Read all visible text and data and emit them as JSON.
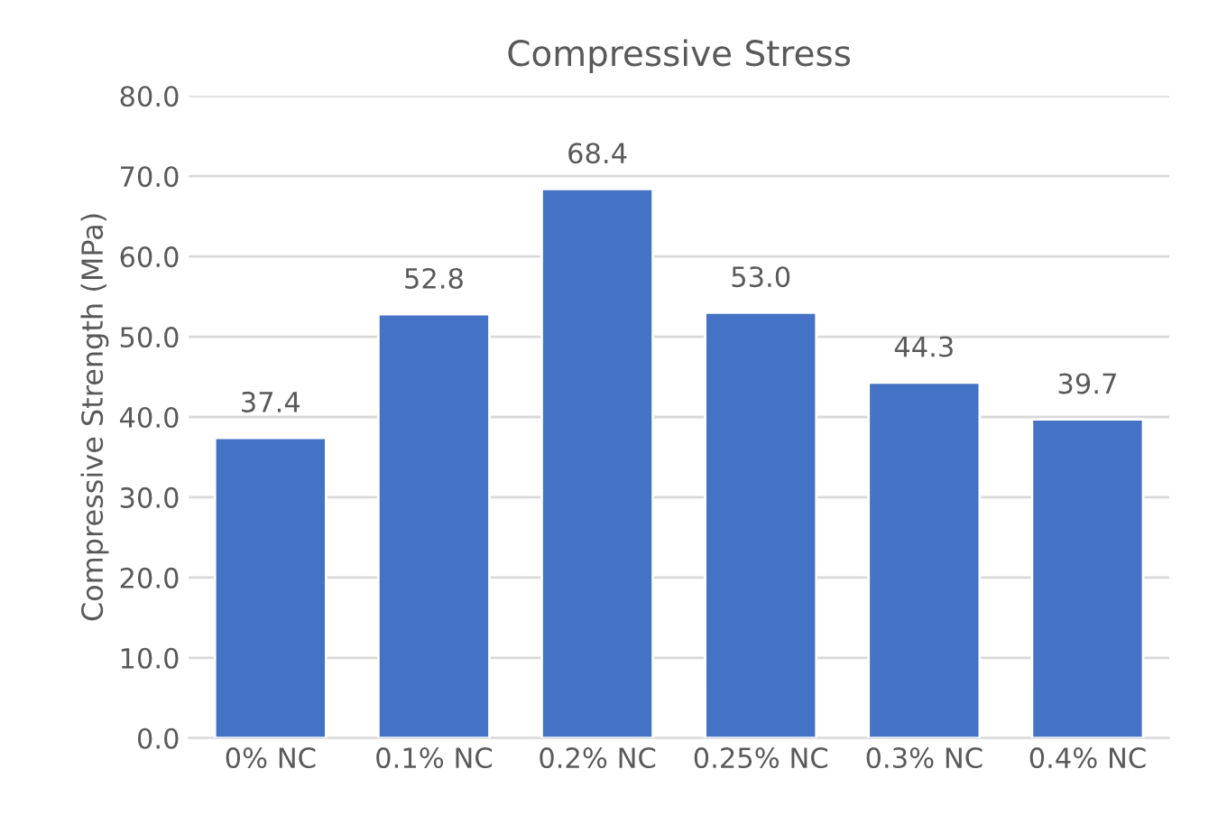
{
  "chart_data": {
    "type": "bar",
    "title": "Compressive Stress",
    "ylabel": "Compressive Strength (MPa)",
    "categories": [
      "0% NC",
      "0.1% NC",
      "0.2% NC",
      "0.25% NC",
      "0.3% NC",
      "0.4% NC"
    ],
    "values": [
      37.4,
      52.8,
      68.4,
      53.0,
      44.3,
      39.7
    ],
    "color": "#4472c4",
    "value_labels": [
      "37.4",
      "52.8",
      "68.4",
      "53.0",
      "44.3",
      "39.7"
    ],
    "ylim": [
      0,
      80
    ],
    "yticks": [
      {
        "value": 0,
        "label": "0.0"
      },
      {
        "value": 10,
        "label": "10.0"
      },
      {
        "value": 20,
        "label": "20.0"
      },
      {
        "value": 30,
        "label": "30.0"
      },
      {
        "value": 40,
        "label": "40.0"
      },
      {
        "value": 50,
        "label": "50.0"
      },
      {
        "value": 60,
        "label": "60.0"
      },
      {
        "value": 70,
        "label": "70.0"
      },
      {
        "value": 80,
        "label": "80.0"
      }
    ],
    "grid": "y"
  }
}
